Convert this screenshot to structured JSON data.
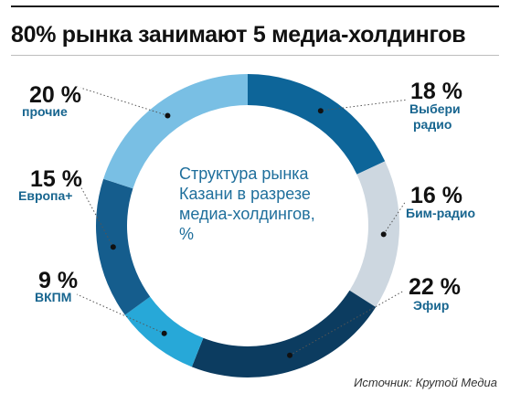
{
  "header": {
    "title": "80% рынка занимают 5 медиа-холдингов"
  },
  "chart_data": {
    "type": "pie",
    "variant": "donut",
    "center_label_lines": [
      "Структура рынка",
      "Казани в разрезе",
      "медиа-холдингов,",
      "%"
    ],
    "slices": [
      {
        "label": "Выбери радио",
        "value": 18,
        "value_text": "18 %",
        "label_lines": [
          "Выбери",
          "радио"
        ],
        "color": "#0d6599"
      },
      {
        "label": "Бим-радио",
        "value": 16,
        "value_text": "16 %",
        "label_lines": [
          "Бим-радио"
        ],
        "color": "#cdd7e0"
      },
      {
        "label": "Эфир",
        "value": 22,
        "value_text": "22 %",
        "label_lines": [
          "Эфир"
        ],
        "color": "#0c3c60"
      },
      {
        "label": "ВКПМ",
        "value": 9,
        "value_text": "9 %",
        "label_lines": [
          "ВКПМ"
        ],
        "color": "#27a8d8"
      },
      {
        "label": "Европа+",
        "value": 15,
        "value_text": "15 %",
        "label_lines": [
          "Европа+"
        ],
        "color": "#155d8d"
      },
      {
        "label": "прочие",
        "value": 20,
        "value_text": "20 %",
        "label_lines": [
          "прочие"
        ],
        "color": "#79bfe4"
      }
    ]
  },
  "footer": {
    "source": "Источник: Крутой Медиа"
  }
}
